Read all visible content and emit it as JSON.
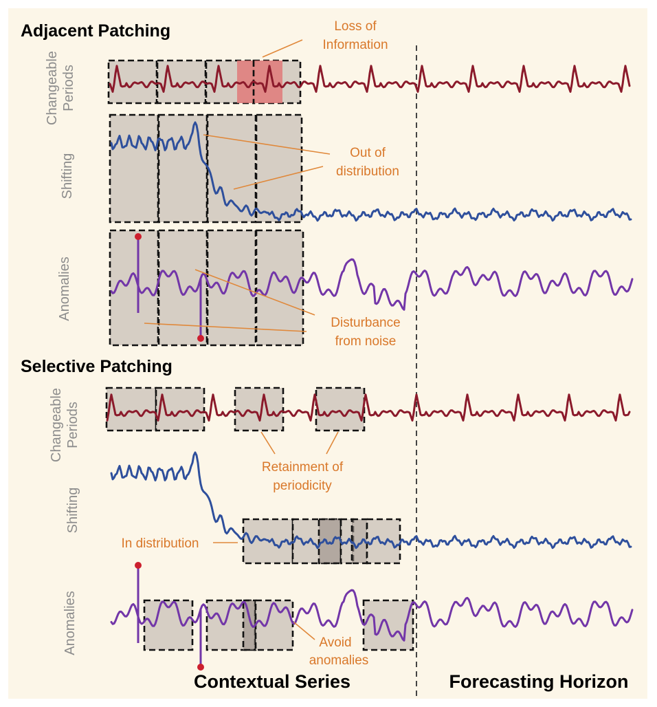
{
  "sections": {
    "adjacent": "Adjacent Patching",
    "selective": "Selective Patching"
  },
  "rows": {
    "periods_line1": "Changeable",
    "periods_line2": "Periods",
    "shifting": "Shifting",
    "anomalies": "Anomalies"
  },
  "annotations": {
    "loss_line1": "Loss of",
    "loss_line2": "Information",
    "ood_line1": "Out of",
    "ood_line2": "distribution",
    "noise_line1": "Disturbance",
    "noise_line2": "from noise",
    "retain_line1": "Retainment of",
    "retain_line2": "periodicity",
    "in_dist": "In distribution",
    "avoid_line1": "Avoid",
    "avoid_line2": "anomalies"
  },
  "bottom": {
    "contextual": "Contextual Series",
    "horizon": "Forecasting Horizon"
  },
  "colors": {
    "background": "#fcf6e8",
    "periods": "#8b1a2b",
    "shifting": "#2e4f9c",
    "anomalies": "#7236a8",
    "annotation": "#d9782a",
    "patch": "#cfc7bd",
    "highlight": "#e07a7a",
    "spike_dot": "#cc1f2e"
  }
}
